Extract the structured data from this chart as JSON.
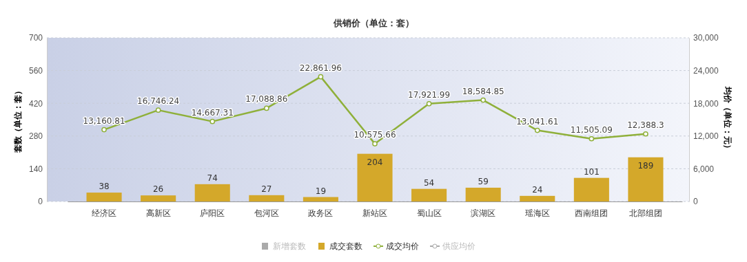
{
  "chart_data": {
    "type": "bar",
    "title": "供销价（单位：套）",
    "ylabel": "套数（单位：套）",
    "y2label": "均价（单位：元）",
    "categories": [
      "经济区",
      "高新区",
      "庐阳区",
      "包河区",
      "政务区",
      "新站区",
      "蜀山区",
      "滨湖区",
      "瑶海区",
      "西南组团",
      "北部组团"
    ],
    "series": [
      {
        "name": "新增套数",
        "color": "#aaaaaa",
        "values": [
          null,
          null,
          null,
          null,
          null,
          null,
          null,
          null,
          null,
          null,
          null
        ]
      },
      {
        "name": "成交套数",
        "color": "#d4a82a",
        "values": [
          38,
          26,
          74,
          27,
          19,
          204,
          54,
          59,
          24,
          101,
          189
        ]
      },
      {
        "name": "成交均价",
        "type": "line",
        "axis": "y2",
        "color": "#8fb03a",
        "values": [
          13160.81,
          16746.24,
          14667.31,
          17088.86,
          22861.96,
          10575.66,
          17921.99,
          18584.85,
          13041.61,
          11505.09,
          12388.3
        ],
        "value_labels": [
          "13,160.81",
          "16,746.24",
          "14,667.31",
          "17,088.86",
          "22,861.96",
          "10,575.66",
          "17,921.99",
          "18,584.85",
          "13,041.61",
          "11,505.09",
          "12,388.3"
        ]
      },
      {
        "name": "供应均价",
        "type": "line",
        "axis": "y2",
        "color": "#aaaaaa",
        "values": [
          null,
          null,
          null,
          null,
          null,
          null,
          null,
          null,
          null,
          null,
          null
        ]
      }
    ],
    "ylim": [
      0,
      700
    ],
    "yticks": [
      0,
      140,
      280,
      420,
      560,
      700
    ],
    "y2lim": [
      0,
      30000
    ],
    "y2ticks": [
      0,
      {
        "value": 6000,
        "label": "6,000"
      },
      {
        "value": 12000,
        "label": "12,000"
      },
      {
        "value": 18000,
        "label": "18,000"
      },
      {
        "value": 24000,
        "label": "24,000"
      },
      {
        "value": 30000,
        "label": "30,000"
      }
    ],
    "grid": "y",
    "legend": "bottom",
    "marker": "circle",
    "data_labels": true
  }
}
